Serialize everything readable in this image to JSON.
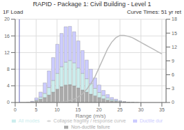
{
  "chart_data": {
    "type": "bar",
    "title": "RAPID - Package 1: Civil Building - Level 1",
    "annotations": [
      "1F Load",
      "Curve Times: 51 yr ret"
    ],
    "xlabel": "Range (m/s)",
    "stacked": true,
    "grid": true,
    "legend": "bottom",
    "x": [
      1,
      2,
      3,
      4,
      5,
      6,
      7,
      8,
      9,
      10,
      11,
      12,
      13,
      14,
      15,
      16,
      17,
      18,
      19,
      20,
      21,
      22,
      23,
      24,
      25,
      26,
      27,
      28,
      29,
      30,
      31,
      32,
      33,
      34,
      35
    ],
    "xlim": [
      0,
      36
    ],
    "xticks": [
      0,
      5,
      10,
      15,
      20,
      25,
      30,
      35
    ],
    "ylim": [
      0,
      20
    ],
    "yticks": [
      0,
      4,
      8,
      12,
      16,
      20
    ],
    "y2lim": [
      0,
      18
    ],
    "y2ticks": [
      0,
      3,
      6,
      9,
      12,
      15,
      18
    ],
    "vlines": [
      {
        "x": 1,
        "color": "#6666bb"
      }
    ],
    "series": [
      {
        "name": "Non-ductile failure",
        "type": "bar",
        "color": "#aaaaaa",
        "values": [
          0.0,
          0.0,
          0.1,
          0.2,
          0.4,
          0.8,
          1.2,
          1.8,
          2.5,
          3.2,
          3.8,
          4.2,
          4.3,
          4.0,
          3.5,
          3.0,
          2.5,
          2.0,
          1.6,
          1.2,
          0.9,
          0.6,
          0.4,
          0.3,
          0.2,
          0.1,
          0.05,
          0.02,
          0.01,
          0.0,
          0.0,
          0.0,
          0.0,
          0.0,
          0.0
        ]
      },
      {
        "name": "All modes",
        "type": "bar",
        "color": "#cceeee",
        "values": [
          0.0,
          0.0,
          0.0,
          0.0,
          0.2,
          0.5,
          1.0,
          1.8,
          2.8,
          3.8,
          4.8,
          5.5,
          5.8,
          5.5,
          4.8,
          4.0,
          3.2,
          2.5,
          1.8,
          1.2,
          0.8,
          0.5,
          0.3,
          0.2,
          0.1,
          0.05,
          0.02,
          0.01,
          0.0,
          0.0,
          0.0,
          0.0,
          0.0,
          0.0,
          0.0
        ]
      },
      {
        "name": "Ductile dur",
        "type": "bar",
        "color": "#ccccff",
        "values": [
          0.0,
          0.0,
          0.0,
          0.1,
          0.5,
          1.2,
          2.5,
          4.0,
          5.5,
          7.0,
          8.0,
          8.5,
          8.2,
          7.5,
          6.5,
          5.5,
          4.5,
          3.5,
          2.5,
          1.8,
          1.2,
          0.8,
          0.5,
          0.3,
          0.1,
          0.05,
          0.0,
          0.0,
          0.0,
          0.0,
          0.0,
          0.0,
          0.0,
          0.0,
          0.0
        ]
      },
      {
        "name": "Collapse fragility / response curve",
        "type": "line",
        "axis": "y2",
        "color": "#bbbbbb",
        "values": [
          0.0,
          0.0,
          0.0,
          0.0,
          0.0,
          0.0,
          0.0,
          0.0,
          0.0,
          0.05,
          0.1,
          0.2,
          0.4,
          0.7,
          1.2,
          1.8,
          2.8,
          4.0,
          5.5,
          7.5,
          9.5,
          11.5,
          13.0,
          14.0,
          14.5,
          14.5,
          14.3,
          14.0,
          13.5,
          13.0,
          12.5,
          12.0,
          11.5,
          11.0,
          10.5
        ]
      }
    ]
  }
}
